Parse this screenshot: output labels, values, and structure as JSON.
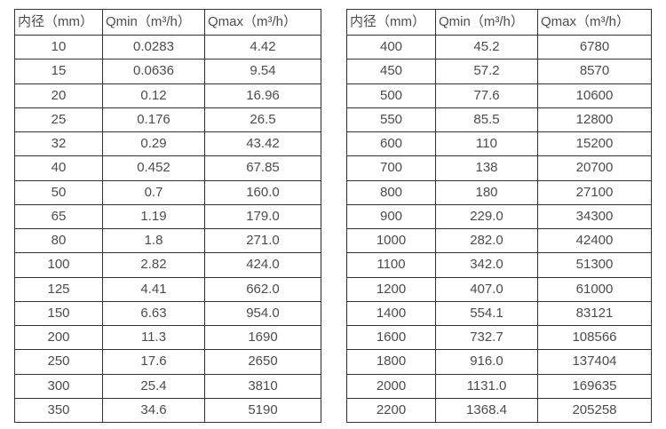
{
  "colors": {
    "background": "#ffffff",
    "border": "#333333",
    "text": "#4c4c4c"
  },
  "left_table": {
    "headers": [
      "内径（mm）",
      "Qmin（m³/h）",
      "Qmax（m³/h）"
    ],
    "rows": [
      [
        "10",
        "0.0283",
        "4.42"
      ],
      [
        "15",
        "0.0636",
        "9.54"
      ],
      [
        "20",
        "0.12",
        "16.96"
      ],
      [
        "25",
        "0.176",
        "26.5"
      ],
      [
        "32",
        "0.29",
        "43.42"
      ],
      [
        "40",
        "0.452",
        "67.85"
      ],
      [
        "50",
        "0.7",
        "160.0"
      ],
      [
        "65",
        "1.19",
        "179.0"
      ],
      [
        "80",
        "1.8",
        "271.0"
      ],
      [
        "100",
        "2.82",
        "424.0"
      ],
      [
        "125",
        "4.41",
        "662.0"
      ],
      [
        "150",
        "6.63",
        "954.0"
      ],
      [
        "200",
        "11.3",
        "1690"
      ],
      [
        "250",
        "17.6",
        "2650"
      ],
      [
        "300",
        "25.4",
        "3810"
      ],
      [
        "350",
        "34.6",
        "5190"
      ]
    ]
  },
  "right_table": {
    "headers": [
      "内径（mm）",
      "Qmin（m³/h）",
      "Qmax（m³/h）"
    ],
    "rows": [
      [
        "400",
        "45.2",
        "6780"
      ],
      [
        "450",
        "57.2",
        "8570"
      ],
      [
        "500",
        "77.6",
        "10600"
      ],
      [
        "550",
        "85.5",
        "12800"
      ],
      [
        "600",
        "110",
        "15200"
      ],
      [
        "700",
        "138",
        "20700"
      ],
      [
        "800",
        "180",
        "27100"
      ],
      [
        "900",
        "229.0",
        "34300"
      ],
      [
        "1000",
        "282.0",
        "42400"
      ],
      [
        "1100",
        "342.0",
        "51300"
      ],
      [
        "1200",
        "407.0",
        "61000"
      ],
      [
        "1400",
        "554.1",
        "83121"
      ],
      [
        "1600",
        "732.7",
        "108566"
      ],
      [
        "1800",
        "916.0",
        "137404"
      ],
      [
        "2000",
        "1131.0",
        "169635"
      ],
      [
        "2200",
        "1368.4",
        "205258"
      ]
    ]
  }
}
